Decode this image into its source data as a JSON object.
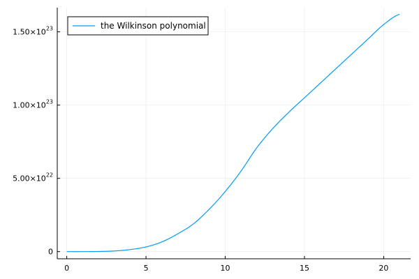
{
  "chart_data": {
    "type": "line",
    "title": "",
    "xlabel": "",
    "ylabel": "",
    "xlim": [
      -0.6,
      21.7
    ],
    "ylim": [
      -4.9e+21,
      1.665e+23
    ],
    "x_ticks": [
      0,
      5,
      10,
      15,
      20
    ],
    "x_tick_labels": [
      "0",
      "5",
      "10",
      "15",
      "20"
    ],
    "y_ticks": [
      {
        "value": 0,
        "mantissa": "0",
        "exponent": ""
      },
      {
        "value": 5e+22,
        "mantissa": "5.00×10",
        "exponent": "22"
      },
      {
        "value": 1e+23,
        "mantissa": "1.00×10",
        "exponent": "23"
      },
      {
        "value": 1.5e+23,
        "mantissa": "1.50×10",
        "exponent": "23"
      }
    ],
    "grid": true,
    "legend_position": "top-left",
    "series": [
      {
        "name": "the Wilkinson polynomial",
        "color": "#009af9",
        "x": [
          0,
          1,
          2,
          3,
          4,
          5,
          6,
          7,
          8,
          9,
          10,
          11,
          12,
          13,
          14,
          15,
          16,
          17,
          18,
          19,
          20,
          21
        ],
        "y": [
          0,
          2.6e+18,
          8.9e+19,
          4.3e+20,
          1.37e+21,
          3.2e+21,
          6.6e+21,
          1.21e+22,
          1.9e+22,
          2.9e+22,
          4.1e+22,
          5.5e+22,
          7.1e+22,
          8.4e+22,
          9.5e+22,
          1.05e+23,
          1.15e+23,
          1.25e+23,
          1.35e+23,
          1.45e+23,
          1.55e+23,
          1.62e+23
        ]
      }
    ]
  }
}
